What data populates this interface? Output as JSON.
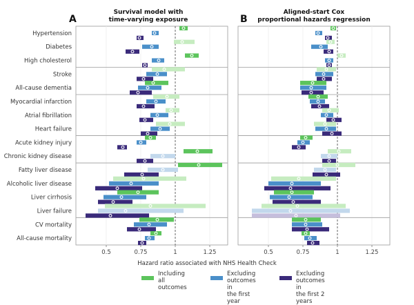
{
  "chart_data": {
    "type": "forest",
    "panels": [
      {
        "letter": "A",
        "title_lines": [
          "Survival model with",
          "time-varying exposure"
        ]
      },
      {
        "letter": "B",
        "title_lines": [
          "Aligned-start Cox",
          "proportional hazards regression"
        ]
      }
    ],
    "xlabel": "Hazard ratio associated with NHS Health Check",
    "xlim": [
      0.28,
      1.38
    ],
    "ticks": [
      "0.5",
      "0.75",
      "1",
      "1.25"
    ],
    "tick_values": [
      0.5,
      0.75,
      1.0,
      1.25
    ],
    "reference_line": 1.0,
    "groups": [
      3,
      2,
      3,
      2,
      4,
      2
    ],
    "series": [
      {
        "key": "all",
        "name": "Including all outcomes",
        "color": "#5cc45c",
        "light": "#c6ecc0"
      },
      {
        "key": "y1",
        "name": "Excluding outcomes in the first year",
        "color": "#4a8fc9",
        "light": "#c2d8ec"
      },
      {
        "key": "y2",
        "name": "Excluding outcomes in the first 2 years",
        "color": "#3a2a7a",
        "light": "#c5bedc"
      }
    ],
    "outcomes": [
      {
        "label": "Hypertension",
        "A": [
          [
            1.06,
            1.03,
            1.09,
            1
          ],
          [
            0.85,
            0.83,
            0.88,
            1
          ],
          [
            0.74,
            0.72,
            0.77,
            1
          ]
        ],
        "B": [
          [
            0.97,
            0.95,
            0.99,
            1
          ],
          [
            0.86,
            0.84,
            0.89,
            1
          ],
          [
            0.93,
            0.91,
            0.96,
            1
          ]
        ]
      },
      {
        "label": "Diabetes",
        "A": [
          [
            1.05,
            0.99,
            1.14,
            0
          ],
          [
            0.83,
            0.76,
            0.88,
            1
          ],
          [
            0.69,
            0.64,
            0.74,
            1
          ]
        ],
        "B": [
          [
            0.95,
            0.92,
            0.98,
            0
          ],
          [
            0.88,
            0.81,
            0.93,
            1
          ],
          [
            0.94,
            0.9,
            0.97,
            1
          ]
        ]
      },
      {
        "label": "High cholesterol",
        "A": [
          [
            1.12,
            1.07,
            1.17,
            1
          ],
          [
            0.88,
            0.83,
            0.92,
            1
          ],
          [
            0.78,
            0.76,
            0.8,
            1
          ]
        ],
        "B": [
          [
            1.03,
            1.0,
            1.06,
            0
          ],
          [
            0.94,
            0.91,
            0.97,
            1
          ],
          [
            0.94,
            0.92,
            0.96,
            1
          ]
        ]
      },
      {
        "label": "Stroke",
        "A": [
          [
            0.92,
            0.83,
            1.07,
            0
          ],
          [
            0.87,
            0.79,
            0.94,
            1
          ],
          [
            0.77,
            0.72,
            0.84,
            1
          ]
        ],
        "B": [
          [
            0.92,
            0.85,
            0.99,
            0
          ],
          [
            0.9,
            0.84,
            0.97,
            1
          ],
          [
            0.9,
            0.85,
            0.96,
            1
          ]
        ]
      },
      {
        "label": "All-cause dementia",
        "A": [
          [
            0.84,
            0.78,
            0.95,
            1
          ],
          [
            0.8,
            0.73,
            0.9,
            1
          ],
          [
            0.73,
            0.67,
            0.83,
            1
          ]
        ],
        "B": [
          [
            0.82,
            0.73,
            0.92,
            1
          ],
          [
            0.81,
            0.73,
            0.92,
            1
          ],
          [
            0.81,
            0.74,
            0.9,
            1
          ]
        ]
      },
      {
        "label": "Myocardial infarction",
        "A": [
          [
            0.94,
            0.84,
            1.03,
            0
          ],
          [
            0.86,
            0.79,
            0.93,
            1
          ],
          [
            0.77,
            0.72,
            0.85,
            1
          ]
        ],
        "B": [
          [
            0.86,
            0.79,
            0.93,
            1
          ],
          [
            0.86,
            0.8,
            0.91,
            1
          ],
          [
            0.87,
            0.81,
            0.94,
            1
          ]
        ]
      },
      {
        "label": "Atrial fibrillation",
        "A": [
          [
            0.97,
            0.93,
            1.03,
            0
          ],
          [
            0.87,
            0.82,
            0.95,
            1
          ],
          [
            0.78,
            0.74,
            0.84,
            1
          ]
        ],
        "B": [
          [
            0.94,
            0.89,
            1.01,
            0
          ],
          [
            0.92,
            0.88,
            0.97,
            1
          ],
          [
            0.97,
            0.92,
            1.03,
            1
          ]
        ]
      },
      {
        "label": "Heart failure",
        "A": [
          [
            0.96,
            0.86,
            1.07,
            0
          ],
          [
            0.89,
            0.82,
            0.96,
            1
          ],
          [
            0.8,
            0.75,
            0.87,
            1
          ]
        ],
        "B": [
          [
            0.91,
            0.83,
            0.99,
            0
          ],
          [
            0.92,
            0.84,
            0.99,
            1
          ],
          [
            0.96,
            0.89,
            1.03,
            1
          ]
        ]
      },
      {
        "label": "Acute kidney injury",
        "A": [
          [
            0.82,
            0.78,
            0.86,
            1
          ],
          [
            0.75,
            0.72,
            0.79,
            1
          ],
          [
            0.62,
            0.58,
            0.65,
            1
          ]
        ],
        "B": [
          [
            0.77,
            0.73,
            0.82,
            1
          ],
          [
            0.75,
            0.71,
            0.8,
            1
          ],
          [
            0.72,
            0.67,
            0.77,
            1
          ]
        ]
      },
      {
        "label": "Chronic kidney disease",
        "A": [
          [
            1.16,
            1.06,
            1.27,
            1
          ],
          [
            0.91,
            0.82,
            1.0,
            0
          ],
          [
            0.78,
            0.72,
            0.84,
            1
          ]
        ],
        "B": [
          [
            1.01,
            0.93,
            1.1,
            0
          ],
          [
            0.94,
            0.88,
            1.0,
            0
          ],
          [
            0.94,
            0.89,
            0.99,
            1
          ]
        ]
      },
      {
        "label": "Fatty liver disease",
        "A": [
          [
            1.17,
            1.02,
            1.34,
            1
          ],
          [
            0.91,
            0.8,
            1.02,
            0
          ],
          [
            0.76,
            0.63,
            0.88,
            1
          ]
        ],
        "B": [
          [
            1.0,
            0.89,
            1.13,
            0
          ],
          [
            0.91,
            0.83,
            0.99,
            0
          ],
          [
            0.92,
            0.82,
            1.02,
            1
          ]
        ]
      },
      {
        "label": "Alcoholic liver disease",
        "A": [
          [
            0.77,
            0.55,
            1.08,
            0
          ],
          [
            0.68,
            0.52,
            0.88,
            1
          ],
          [
            0.58,
            0.42,
            0.76,
            1
          ]
        ],
        "B": [
          [
            0.72,
            0.52,
            0.99,
            0
          ],
          [
            0.67,
            0.5,
            0.88,
            1
          ],
          [
            0.66,
            0.47,
            0.95,
            1
          ]
        ]
      },
      {
        "label": "Liver cirrhosis",
        "A": [
          [
            0.73,
            0.58,
            0.88,
            1
          ],
          [
            0.61,
            0.48,
            0.79,
            1
          ],
          [
            0.55,
            0.44,
            0.69,
            1
          ]
        ],
        "B": [
          [
            0.67,
            0.54,
            0.83,
            1
          ],
          [
            0.65,
            0.51,
            0.82,
            1
          ],
          [
            0.68,
            0.53,
            0.88,
            1
          ]
        ]
      },
      {
        "label": "Liver failure",
        "A": [
          [
            0.82,
            0.49,
            1.22,
            0
          ],
          [
            0.64,
            0.44,
            1.06,
            0
          ],
          [
            0.53,
            0.35,
            0.81,
            1
          ]
        ],
        "B": [
          [
            0.71,
            0.45,
            1.06,
            0
          ],
          [
            0.66,
            0.38,
            1.09,
            0
          ],
          [
            0.7,
            0.38,
            1.02,
            0
          ]
        ]
      },
      {
        "label": "CV mortality",
        "A": [
          [
            0.87,
            0.74,
            0.99,
            1
          ],
          [
            0.81,
            0.7,
            0.94,
            1
          ],
          [
            0.74,
            0.65,
            0.86,
            1
          ]
        ],
        "B": [
          [
            0.77,
            0.67,
            0.88,
            1
          ],
          [
            0.77,
            0.67,
            0.89,
            1
          ],
          [
            0.78,
            0.67,
            0.94,
            1
          ]
        ]
      },
      {
        "label": "All-cause mortality",
        "A": [
          [
            0.86,
            0.82,
            0.9,
            1
          ],
          [
            0.81,
            0.78,
            0.85,
            1
          ],
          [
            0.76,
            0.73,
            0.79,
            1
          ]
        ],
        "B": [
          [
            0.77,
            0.74,
            0.8,
            1
          ],
          [
            0.8,
            0.76,
            0.85,
            1
          ],
          [
            0.82,
            0.78,
            0.87,
            1
          ]
        ]
      }
    ]
  },
  "legend": {
    "items": [
      {
        "label_lines": [
          "Including all",
          "outcomes"
        ]
      },
      {
        "label_lines": [
          "Excluding",
          "outcomes in",
          "the first year"
        ]
      },
      {
        "label_lines": [
          "Excluding",
          "outcomes in",
          "the first 2 years"
        ]
      }
    ]
  }
}
